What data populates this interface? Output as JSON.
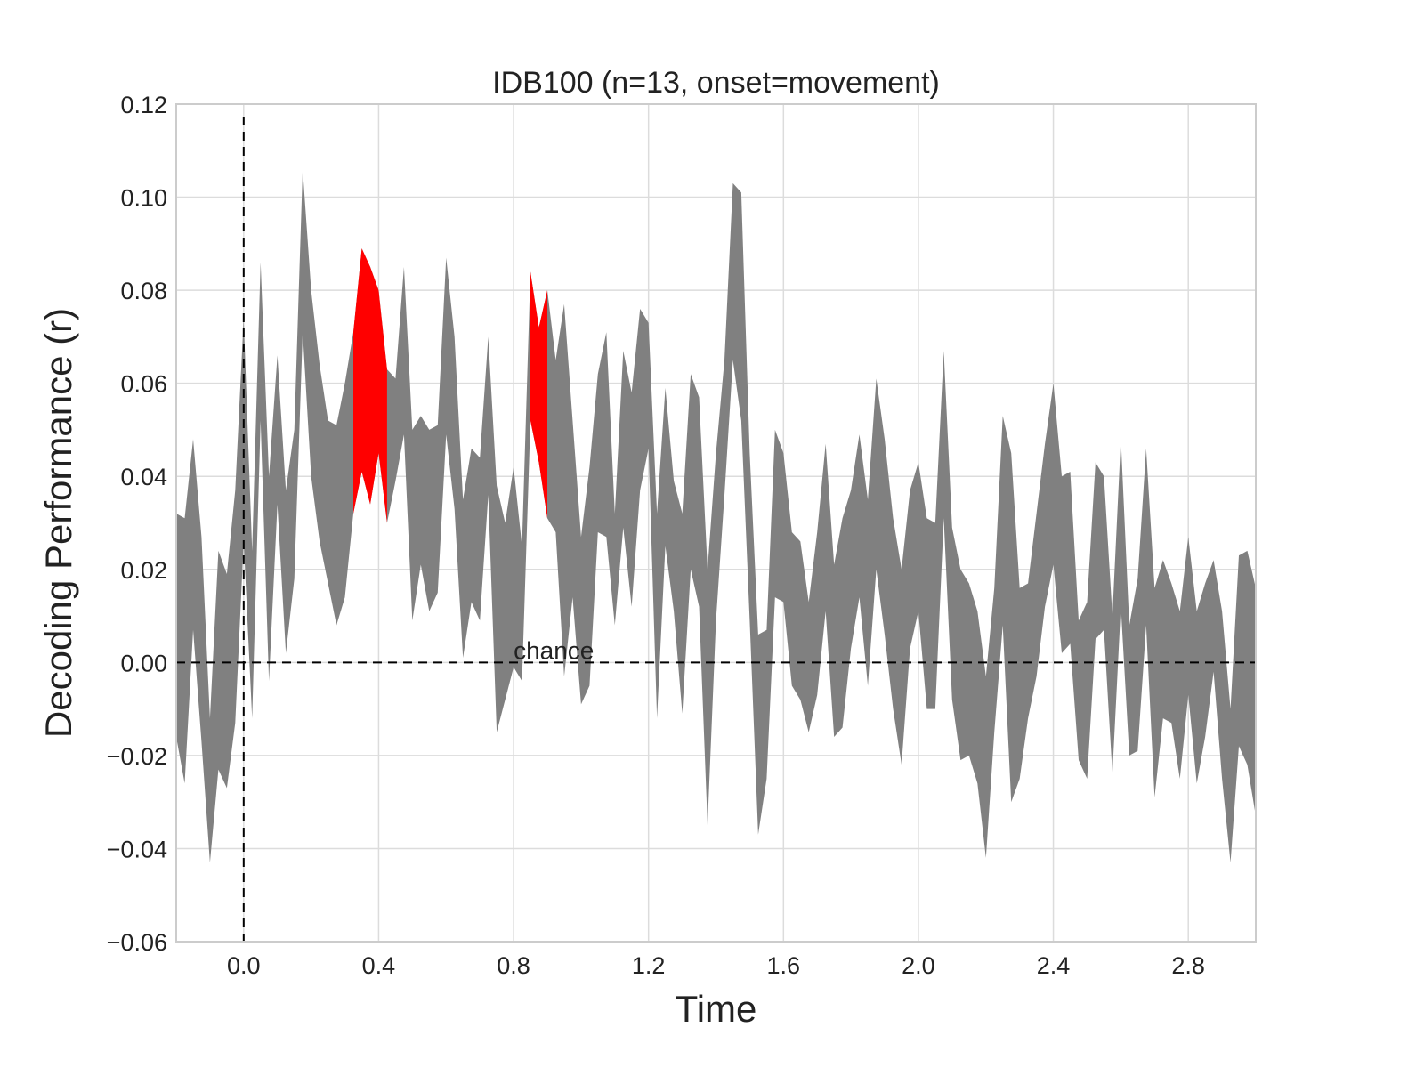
{
  "chart_data": {
    "type": "area",
    "title": "IDB100 (n=13, onset=movement)",
    "xlabel": "Time",
    "ylabel": "Decoding Performance (r)",
    "xlim": [
      -0.2,
      3.0
    ],
    "ylim": [
      -0.06,
      0.12
    ],
    "xticks": [
      "0.0",
      "0.4",
      "0.8",
      "1.2",
      "1.6",
      "2.0",
      "2.4",
      "2.8"
    ],
    "xtick_values": [
      0.0,
      0.4,
      0.8,
      1.2,
      1.6,
      2.0,
      2.4,
      2.8
    ],
    "yticks": [
      "0.12",
      "0.10",
      "0.08",
      "0.06",
      "0.04",
      "0.02",
      "0.00",
      "−0.02",
      "−0.04",
      "−0.06"
    ],
    "ytick_values": [
      0.12,
      0.1,
      0.08,
      0.06,
      0.04,
      0.02,
      0.0,
      -0.02,
      -0.04,
      -0.06
    ],
    "grid": true,
    "reference_lines": [
      {
        "orientation": "horizontal",
        "value": 0.0,
        "style": "dashed",
        "label": "chance"
      },
      {
        "orientation": "vertical",
        "value": 0.0,
        "style": "dashed"
      }
    ],
    "annotation": {
      "text": "chance",
      "x": 0.8,
      "y": 0.0
    },
    "colors": {
      "band": "#808080",
      "significant": "#ff0000",
      "grid": "#dcdcdc",
      "frame": "#cccccc"
    },
    "series": [
      {
        "x": [
          -0.2,
          -0.175,
          -0.15,
          -0.125,
          -0.1,
          -0.075,
          -0.05,
          -0.025,
          0.0,
          0.025,
          0.05,
          0.075,
          0.1,
          0.125,
          0.15,
          0.175,
          0.2,
          0.225,
          0.25,
          0.275,
          0.3,
          0.325,
          0.35,
          0.375,
          0.4,
          0.425,
          0.45,
          0.475,
          0.5,
          0.525,
          0.55,
          0.575,
          0.6,
          0.625,
          0.65,
          0.675,
          0.7,
          0.725,
          0.75,
          0.775,
          0.8,
          0.825,
          0.85,
          0.875,
          0.9,
          0.925,
          0.95,
          0.975,
          1.0,
          1.025,
          1.05,
          1.075,
          1.1,
          1.125,
          1.15,
          1.175,
          1.2,
          1.225,
          1.25,
          1.275,
          1.3,
          1.325,
          1.35,
          1.375,
          1.4,
          1.425,
          1.45,
          1.475,
          1.5,
          1.525,
          1.55,
          1.575,
          1.6,
          1.625,
          1.65,
          1.675,
          1.7,
          1.725,
          1.75,
          1.775,
          1.8,
          1.825,
          1.85,
          1.875,
          1.9,
          1.925,
          1.95,
          1.975,
          2.0,
          2.025,
          2.05,
          2.075,
          2.1,
          2.125,
          2.15,
          2.175,
          2.2,
          2.225,
          2.25,
          2.275,
          2.3,
          2.325,
          2.35,
          2.375,
          2.4,
          2.425,
          2.45,
          2.475,
          2.5,
          2.525,
          2.55,
          2.575,
          2.6,
          2.625,
          2.65,
          2.675,
          2.7,
          2.725,
          2.75,
          2.775,
          2.8,
          2.825,
          2.85,
          2.875,
          2.9,
          2.925,
          2.95,
          2.975,
          3.0
        ],
        "upper": [
          0.032,
          0.031,
          0.048,
          0.027,
          -0.012,
          0.024,
          0.019,
          0.037,
          0.074,
          0.024,
          0.086,
          0.04,
          0.066,
          0.037,
          0.05,
          0.106,
          0.08,
          0.064,
          0.052,
          0.051,
          0.06,
          0.071,
          0.089,
          0.085,
          0.08,
          0.063,
          0.061,
          0.085,
          0.05,
          0.053,
          0.05,
          0.051,
          0.087,
          0.07,
          0.035,
          0.046,
          0.044,
          0.07,
          0.038,
          0.03,
          0.042,
          0.025,
          0.084,
          0.072,
          0.08,
          0.065,
          0.077,
          0.052,
          0.027,
          0.042,
          0.062,
          0.071,
          0.032,
          0.067,
          0.058,
          0.076,
          0.073,
          0.032,
          0.059,
          0.039,
          0.032,
          0.062,
          0.057,
          0.02,
          0.045,
          0.065,
          0.103,
          0.101,
          0.045,
          0.006,
          0.007,
          0.05,
          0.045,
          0.028,
          0.026,
          0.013,
          0.028,
          0.047,
          0.021,
          0.031,
          0.037,
          0.049,
          0.035,
          0.061,
          0.048,
          0.031,
          0.02,
          0.037,
          0.043,
          0.031,
          0.03,
          0.067,
          0.029,
          0.02,
          0.017,
          0.011,
          -0.003,
          0.016,
          0.053,
          0.045,
          0.016,
          0.017,
          0.032,
          0.047,
          0.06,
          0.04,
          0.041,
          0.009,
          0.013,
          0.043,
          0.04,
          0.01,
          0.048,
          0.008,
          0.018,
          0.046,
          0.016,
          0.022,
          0.017,
          0.011,
          0.027,
          0.011,
          0.017,
          0.022,
          0.011,
          -0.01,
          0.023,
          0.024,
          0.016
        ],
        "lower": [
          -0.016,
          -0.026,
          0.007,
          -0.017,
          -0.043,
          -0.023,
          -0.027,
          -0.013,
          0.026,
          -0.012,
          0.052,
          -0.004,
          0.034,
          0.002,
          0.018,
          0.071,
          0.04,
          0.026,
          0.017,
          0.008,
          0.014,
          0.032,
          0.041,
          0.034,
          0.045,
          0.03,
          0.039,
          0.049,
          0.009,
          0.021,
          0.011,
          0.015,
          0.049,
          0.033,
          0.001,
          0.013,
          0.009,
          0.036,
          -0.015,
          -0.008,
          -0.001,
          -0.004,
          0.052,
          0.043,
          0.031,
          0.028,
          -0.003,
          0.014,
          -0.009,
          -0.005,
          0.028,
          0.027,
          0.008,
          0.029,
          0.012,
          0.037,
          0.046,
          -0.012,
          0.025,
          0.011,
          -0.011,
          0.02,
          0.012,
          -0.035,
          0.009,
          0.036,
          0.065,
          0.052,
          0.009,
          -0.037,
          -0.025,
          0.014,
          0.013,
          -0.005,
          -0.008,
          -0.015,
          -0.007,
          0.011,
          -0.016,
          -0.014,
          0.003,
          0.014,
          -0.005,
          0.02,
          0.006,
          -0.01,
          -0.022,
          0.003,
          0.011,
          -0.01,
          -0.01,
          0.031,
          -0.008,
          -0.021,
          -0.02,
          -0.026,
          -0.042,
          -0.015,
          0.008,
          -0.03,
          -0.025,
          -0.012,
          -0.003,
          0.012,
          0.021,
          0.002,
          0.004,
          -0.021,
          -0.025,
          0.005,
          0.007,
          -0.024,
          0.012,
          -0.02,
          -0.019,
          0.008,
          -0.029,
          -0.012,
          -0.013,
          -0.025,
          -0.007,
          -0.026,
          -0.016,
          -0.002,
          -0.025,
          -0.043,
          -0.018,
          -0.022,
          -0.033
        ],
        "significant_ranges": [
          [
            0.325,
            0.425
          ],
          [
            0.85,
            0.9
          ]
        ]
      }
    ]
  }
}
